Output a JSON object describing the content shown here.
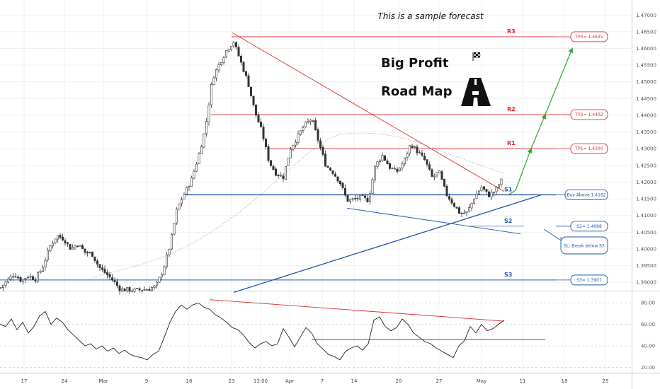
{
  "header": {
    "note": "This is a sample forecast",
    "title_line1": "Big Profit",
    "title_line2": "Road Map"
  },
  "colors": {
    "candle": "#333333",
    "resistance": "#e0292d",
    "support": "#1f56a8",
    "forecast_arrow": "#2fa52f",
    "grid": "#f0f0f0"
  },
  "icons": [
    "checkered-flag-icon",
    "road-icon"
  ],
  "chart_data": [
    {
      "type": "candlestick",
      "yscale": "price",
      "ylim": [
        1.3875,
        1.4745
      ],
      "yticks": [
        "1.47000",
        "1.46500",
        "1.46000",
        "1.45500",
        "1.45000",
        "1.44500",
        "1.44000",
        "1.43500",
        "1.43000",
        "1.42500",
        "1.42000",
        "1.41500",
        "1.41000",
        "1.40500",
        "1.40000",
        "1.39500",
        "1.39000"
      ],
      "close_path": [
        [
          0,
          1.3882
        ],
        [
          10,
          1.3905
        ],
        [
          20,
          1.3925
        ],
        [
          30,
          1.3905
        ],
        [
          40,
          1.392
        ],
        [
          50,
          1.391
        ],
        [
          60,
          1.3945
        ],
        [
          70,
          1.4005
        ],
        [
          80,
          1.404
        ],
        [
          90,
          1.403
        ],
        [
          100,
          1.4
        ],
        [
          110,
          1.4015
        ],
        [
          120,
          1.399
        ],
        [
          130,
          1.3985
        ],
        [
          140,
          1.3945
        ],
        [
          150,
          1.3925
        ],
        [
          160,
          1.3905
        ],
        [
          170,
          1.3878
        ],
        [
          180,
          1.3878
        ],
        [
          190,
          1.3876
        ],
        [
          200,
          1.3878
        ],
        [
          210,
          1.388
        ],
        [
          220,
          1.3888
        ],
        [
          230,
          1.3935
        ],
        [
          240,
          1.401
        ],
        [
          250,
          1.412
        ],
        [
          260,
          1.4165
        ],
        [
          270,
          1.4205
        ],
        [
          280,
          1.4275
        ],
        [
          290,
          1.436
        ],
        [
          300,
          1.451
        ],
        [
          310,
          1.4555
        ],
        [
          320,
          1.4595
        ],
        [
          330,
          1.462
        ],
        [
          340,
          1.456
        ],
        [
          350,
          1.45
        ],
        [
          360,
          1.441
        ],
        [
          370,
          1.435
        ],
        [
          380,
          1.426
        ],
        [
          390,
          1.4225
        ],
        [
          400,
          1.4215
        ],
        [
          410,
          1.43
        ],
        [
          420,
          1.4335
        ],
        [
          430,
          1.437
        ],
        [
          440,
          1.439
        ],
        [
          450,
          1.432
        ],
        [
          460,
          1.425
        ],
        [
          470,
          1.423
        ],
        [
          480,
          1.42
        ],
        [
          490,
          1.4145
        ],
        [
          500,
          1.4148
        ],
        [
          510,
          1.4155
        ],
        [
          520,
          1.4145
        ],
        [
          530,
          1.425
        ],
        [
          540,
          1.428
        ],
        [
          550,
          1.4245
        ],
        [
          560,
          1.423
        ],
        [
          570,
          1.426
        ],
        [
          580,
          1.4315
        ],
        [
          590,
          1.429
        ],
        [
          600,
          1.4265
        ],
        [
          610,
          1.4215
        ],
        [
          620,
          1.423
        ],
        [
          630,
          1.4165
        ],
        [
          640,
          1.4135
        ],
        [
          650,
          1.4105
        ],
        [
          660,
          1.411
        ],
        [
          670,
          1.4155
        ],
        [
          680,
          1.4185
        ],
        [
          690,
          1.416
        ],
        [
          700,
          1.4175
        ],
        [
          705,
          1.4195
        ],
        [
          710,
          1.421
        ]
      ],
      "levels": [
        {
          "label": "R3",
          "value": 1.4635,
          "box": "TP3= 1.4635",
          "color": "resistance"
        },
        {
          "label": "R2",
          "value": 1.4402,
          "box": "TP2= 1.4402",
          "color": "resistance"
        },
        {
          "label": "R1",
          "value": 1.43,
          "box": "TP1= 1.4300",
          "color": "resistance"
        },
        {
          "label": "S1",
          "value": 1.4162,
          "box": "Buy Above 1.4162",
          "color": "support"
        },
        {
          "label": "S2",
          "value": 1.4068,
          "box": "S2= 1.4068",
          "color": "support"
        },
        {
          "label": "S3",
          "value": 1.3907,
          "box": "S3= 1.3907",
          "color": "support"
        }
      ],
      "stop_box": "SL: Break below S3",
      "trendlines": [
        {
          "name": "descending-resistance",
          "from": [
            328,
            1.4647
          ],
          "to": [
            712,
            1.4172
          ],
          "color": "resistance"
        },
        {
          "name": "ascending-support",
          "from": [
            330,
            1.387
          ],
          "to": [
            765,
            1.4162
          ],
          "color": "support"
        },
        {
          "name": "lower-channel",
          "from": [
            490,
            1.4122
          ],
          "to": [
            735,
            1.4045
          ],
          "color": "support"
        }
      ],
      "forecast_path": [
        [
          718,
          1.4162
        ],
        [
          728,
          1.4175
        ],
        [
          750,
          1.43
        ],
        [
          770,
          1.4402
        ],
        [
          808,
          1.46
        ]
      ]
    },
    {
      "type": "line",
      "indicator": "RSI",
      "ylim": [
        15,
        90
      ],
      "yticks": [
        "80.00",
        "60.00",
        "40.00",
        "20.00"
      ],
      "x": [
        0,
        8,
        16,
        24,
        32,
        40,
        48,
        56,
        64,
        72,
        80,
        88,
        96,
        104,
        112,
        120,
        128,
        136,
        144,
        152,
        160,
        168,
        176,
        184,
        192,
        200,
        208,
        216,
        224,
        232,
        240,
        248,
        256,
        264,
        272,
        280,
        288,
        296,
        304,
        312,
        320,
        328,
        336,
        344,
        352,
        360,
        368,
        376,
        384,
        392,
        400,
        408,
        416,
        424,
        432,
        440,
        448,
        456,
        464,
        472,
        480,
        488,
        496,
        504,
        512,
        520,
        528,
        536,
        544,
        552,
        560,
        568,
        576,
        584,
        592,
        600,
        608,
        616,
        624,
        632,
        640,
        648,
        656,
        664,
        672,
        680,
        688,
        696,
        704,
        712
      ],
      "values": [
        60,
        58,
        65,
        55,
        62,
        52,
        58,
        68,
        72,
        60,
        66,
        62,
        55,
        50,
        45,
        40,
        42,
        37,
        40,
        35,
        38,
        33,
        36,
        32,
        30,
        29,
        27,
        32,
        35,
        48,
        62,
        72,
        78,
        74,
        78,
        80,
        76,
        74,
        69,
        66,
        62,
        57,
        55,
        50,
        43,
        38,
        42,
        44,
        40,
        42,
        56,
        48,
        39,
        48,
        57,
        52,
        42,
        37,
        32,
        30,
        27,
        35,
        38,
        40,
        36,
        42,
        64,
        67,
        58,
        54,
        57,
        65,
        60,
        52,
        48,
        44,
        42,
        38,
        35,
        32,
        29,
        40,
        45,
        58,
        52,
        60,
        54,
        56,
        60,
        64
      ],
      "trendlines": [
        {
          "from": [
            296,
            83
          ],
          "to": [
            712,
            63
          ],
          "color": "resistance"
        },
        {
          "from": [
            440,
            46
          ],
          "to": [
            770,
            46
          ],
          "color": "support"
        }
      ]
    }
  ],
  "x_axis": {
    "labels": [
      "17",
      "24",
      "Mar",
      "9",
      "16",
      "23",
      "13:00",
      "Apr",
      "7",
      "14",
      "20",
      "27",
      "May",
      "11",
      "18",
      "25"
    ]
  }
}
